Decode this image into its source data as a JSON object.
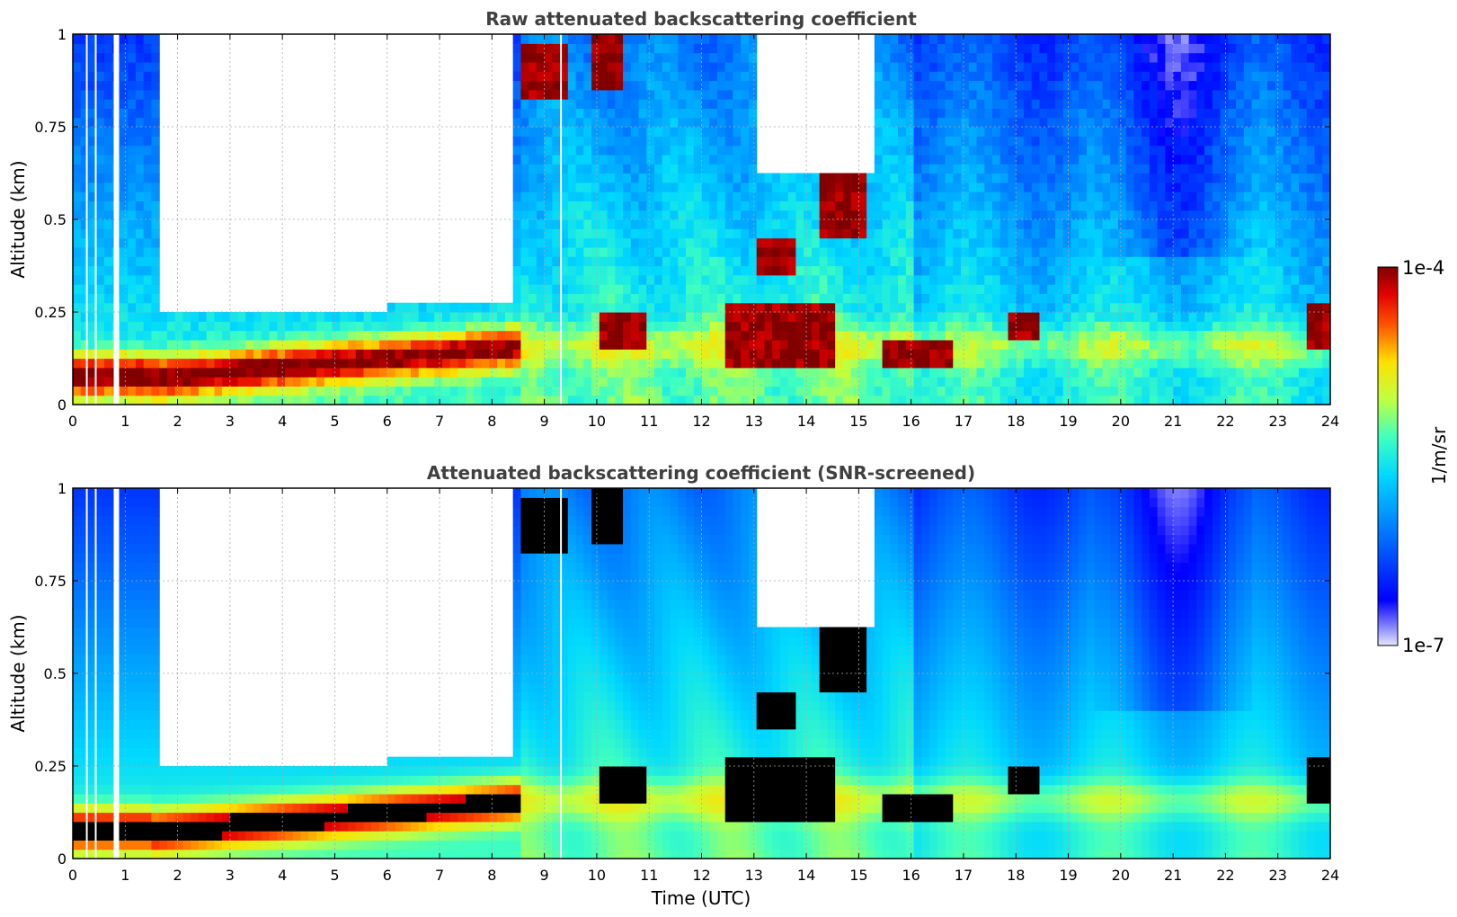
{
  "chart_data": [
    {
      "type": "heatmap",
      "title": "Raw attenuated backscattering coefficient",
      "xlabel": "",
      "ylabel": "Altitude (km)",
      "xlim": [
        0,
        24
      ],
      "ylim": [
        0,
        1
      ],
      "x_ticks": [
        "0",
        "1",
        "2",
        "3",
        "4",
        "5",
        "6",
        "7",
        "8",
        "9",
        "10",
        "11",
        "12",
        "13",
        "14",
        "15",
        "16",
        "17",
        "18",
        "19",
        "20",
        "21",
        "22",
        "23",
        "24"
      ],
      "y_ticks": [
        "0",
        "0.25",
        "0.5",
        "0.75",
        "1"
      ],
      "grid": true,
      "features": {
        "boundary_layer_max_0_8h": 0.1,
        "low_clouds": [
          {
            "start": 10.0,
            "end": 10.9,
            "base": 0.15,
            "top": 0.25
          },
          {
            "start": 12.4,
            "end": 14.5,
            "base": 0.1,
            "top": 0.3
          },
          {
            "start": 13.0,
            "end": 13.8,
            "base": 0.35,
            "top": 0.45
          },
          {
            "start": 14.3,
            "end": 15.2,
            "base": 0.42,
            "top": 0.65
          },
          {
            "start": 15.4,
            "end": 16.8,
            "base": 0.1,
            "top": 0.2
          },
          {
            "start": 17.8,
            "end": 18.5,
            "base": 0.18,
            "top": 0.25
          }
        ]
      }
    },
    {
      "type": "heatmap",
      "title": "Attenuated backscattering coefficient (SNR-screened)",
      "xlabel": "Time (UTC)",
      "ylabel": "Altitude (km)",
      "xlim": [
        0,
        24
      ],
      "ylim": [
        0,
        1
      ],
      "x_ticks": [
        "0",
        "1",
        "2",
        "3",
        "4",
        "5",
        "6",
        "7",
        "8",
        "9",
        "10",
        "11",
        "12",
        "13",
        "14",
        "15",
        "16",
        "17",
        "18",
        "19",
        "20",
        "21",
        "22",
        "23",
        "24"
      ],
      "y_ticks": [
        "0",
        "0.25",
        "0.5",
        "0.75",
        "1"
      ],
      "grid": true
    }
  ],
  "colorbar": {
    "label": "1/m/sr",
    "max_label": "1e-4",
    "min_label": "1e-7",
    "scale": "log",
    "range": [
      1e-07,
      0.0001
    ],
    "colormap": "jet"
  },
  "colors": {
    "title": "#404040",
    "clipped_high": "#000000",
    "missing": "#ffffff"
  }
}
